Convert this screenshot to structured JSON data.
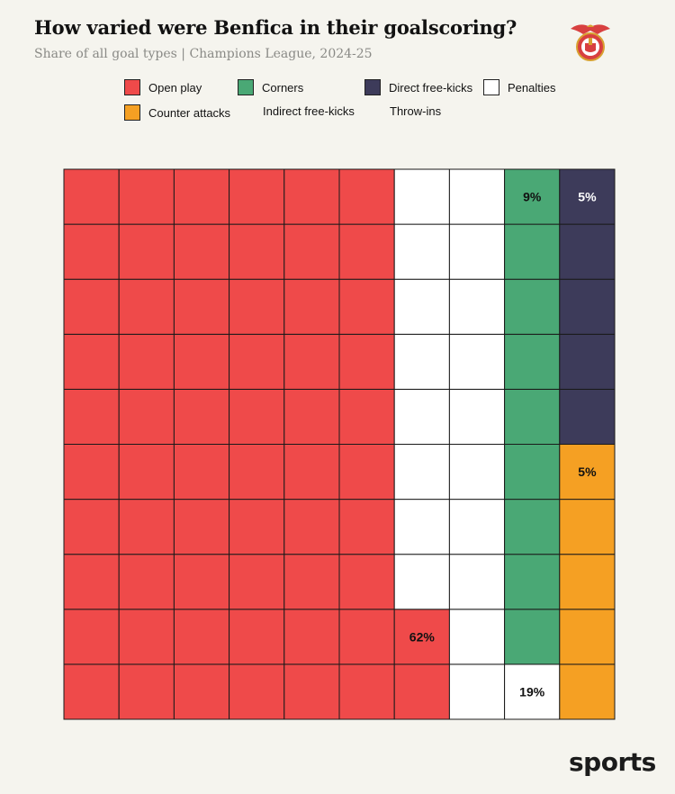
{
  "header": {
    "title": "How varied were Benfica in their goalscoring?",
    "subtitle": "Share of all goal types | Champions League, 2024-25"
  },
  "logo": {
    "name": "benfica-crest-icon"
  },
  "colors": {
    "open_play": "#ef4a4a",
    "corners": "#4aa875",
    "direct_free_kicks": "#3d3b5a",
    "penalties": "#ffffff",
    "counter_attacks": "#f5a023",
    "grid_line": "#1a1a1a"
  },
  "legend": [
    {
      "label": "Open play",
      "color": "#ef4a4a",
      "swatch": true
    },
    {
      "label": "Corners",
      "color": "#4aa875",
      "swatch": true
    },
    {
      "label": "Direct free-kicks",
      "color": "#3d3b5a",
      "swatch": true
    },
    {
      "label": "Penalties",
      "color": "#ffffff",
      "swatch": true
    },
    {
      "label": "Counter attacks",
      "color": "#f5a023",
      "swatch": true
    },
    {
      "label": "Indirect free-kicks",
      "color": null,
      "swatch": false
    },
    {
      "label": "Throw-ins",
      "color": null,
      "swatch": false
    }
  ],
  "chart_data": {
    "type": "waffle",
    "grid": {
      "columns": 10,
      "rows": 10
    },
    "fill_order": "column-major",
    "series": [
      {
        "name": "Open play",
        "value": 62,
        "label": "62%",
        "color": "#ef4a4a"
      },
      {
        "name": "Penalties",
        "value": 19,
        "label": "19%",
        "color": "#ffffff"
      },
      {
        "name": "Corners",
        "value": 9,
        "label": "9%",
        "color": "#4aa875"
      },
      {
        "name": "Counter attacks",
        "value": 5,
        "label": "5%",
        "color": "#f5a023"
      },
      {
        "name": "Direct free-kicks",
        "value": 5,
        "label": "5%",
        "color": "#3d3b5a"
      },
      {
        "name": "Indirect free-kicks",
        "value": 0,
        "label": "",
        "color": null
      },
      {
        "name": "Throw-ins",
        "value": 0,
        "label": "",
        "color": null
      }
    ]
  },
  "watermark": {
    "text": "sports"
  }
}
